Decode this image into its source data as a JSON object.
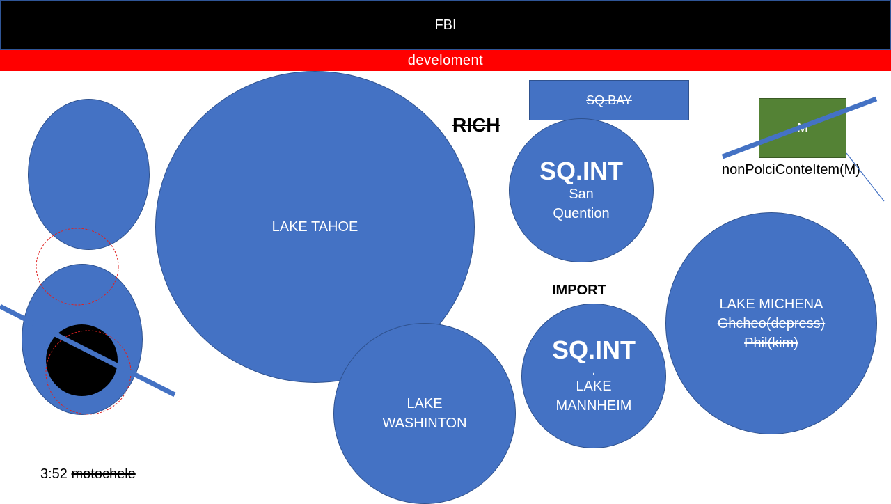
{
  "header": {
    "title": "FBI",
    "subtitle": "develoment"
  },
  "nodes": {
    "tahoe": "LAKE TAHOE",
    "washington_1": "LAKE",
    "washington_2": "WASHINTON",
    "sq_bay": "SQ.BAY",
    "rich": "RICH",
    "sq_int_top": {
      "title": "SQ.INT",
      "line1": "San",
      "line2": "Quention"
    },
    "import": "IMPORT",
    "sq_int_bottom": {
      "title": "SQ.INT",
      "dot": ".",
      "line1": "LAKE",
      "line2": "MANNHEIM"
    },
    "michena": {
      "title": "LAKE MICHENA",
      "line1": "Ghcheo(depress)",
      "line2": "Phil(kim)"
    },
    "green_box": "M",
    "green_caption": "nonPolciConteItem(M)"
  },
  "footer": {
    "time": "3:52",
    "label": "motochele"
  },
  "colors": {
    "circle": "#4472c4",
    "header": "#000000",
    "banner": "#ff0000",
    "box_green": "#548235",
    "dashed": "#e02020"
  }
}
